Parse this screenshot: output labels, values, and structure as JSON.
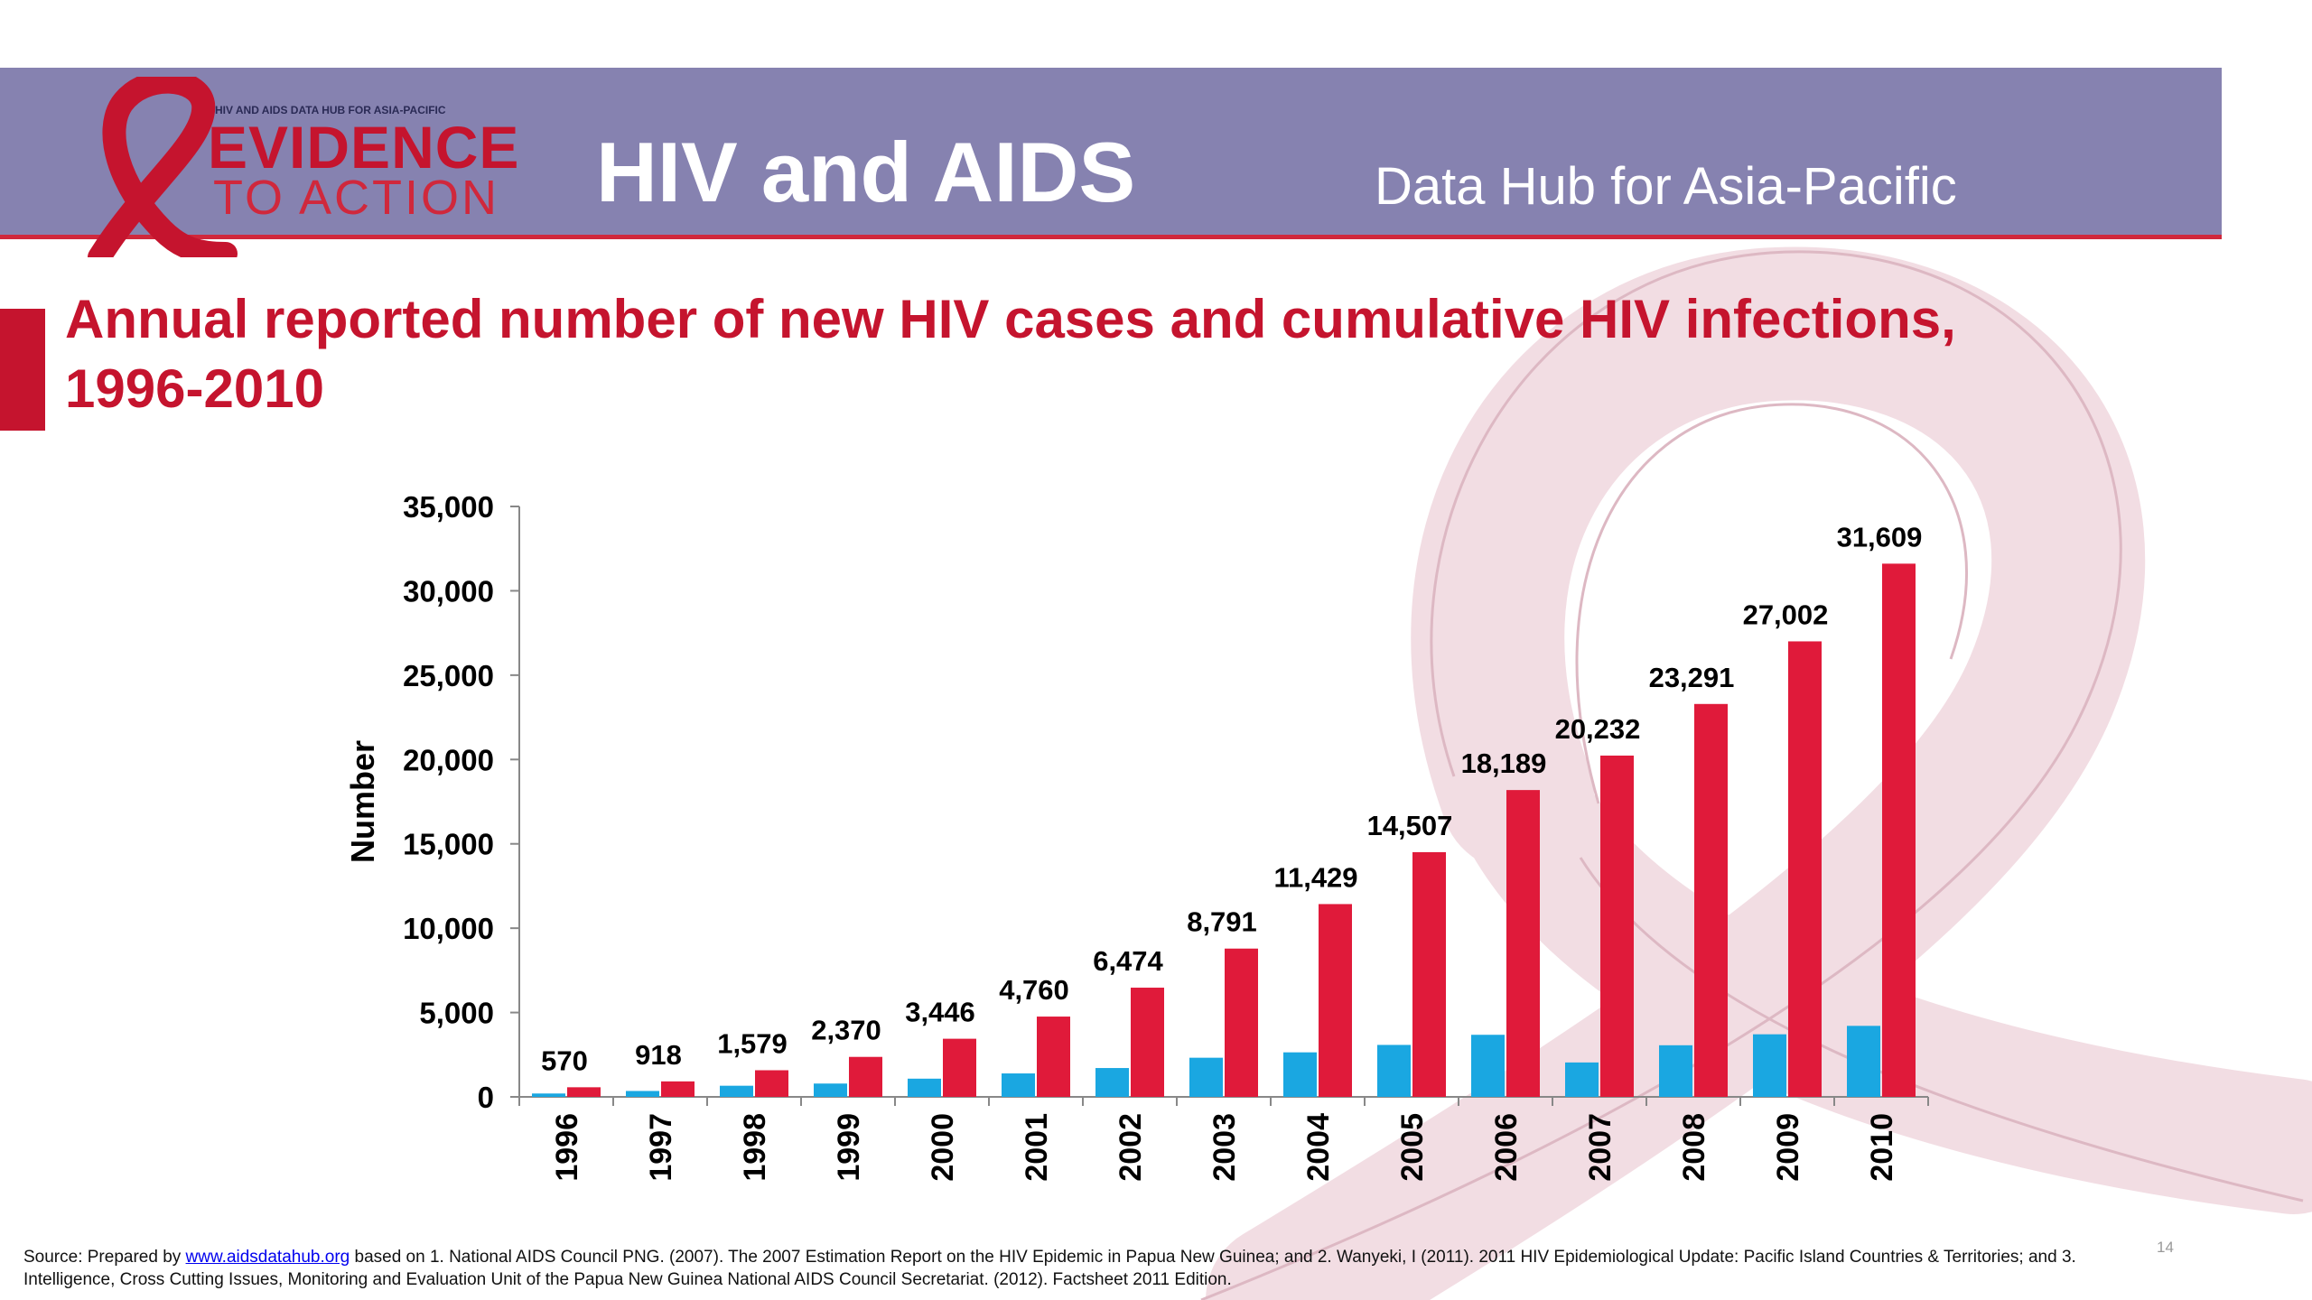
{
  "header": {
    "logo": {
      "line1": "HIV AND AIDS DATA HUB FOR ASIA-PACIFIC",
      "line2": "EVIDENCE",
      "line3": "TO ACTION"
    },
    "title": "HIV and AIDS",
    "subtitle": "Data Hub for Asia-Pacific"
  },
  "colors": {
    "header_band": "#8682b0",
    "brand_red": "#c5142e",
    "new_cases": "#1aa7e1",
    "cumulative": "#e01a3a",
    "ribbon_watermark": "#f2dde3"
  },
  "chart_data": {
    "type": "bar",
    "title_lines": [
      "Annual reported number of  new HIV cases and cumulative HIV infections,",
      "1996-2010"
    ],
    "xlabel": "",
    "ylabel": "Number",
    "ylim": [
      0,
      35000
    ],
    "yticks": [
      "0",
      "5,000",
      "10,000",
      "15,000",
      "20,000",
      "25,000",
      "30,000",
      "35,000"
    ],
    "categories": [
      "1996",
      "1997",
      "1998",
      "1999",
      "2000",
      "2001",
      "2002",
      "2003",
      "2004",
      "2005",
      "2006",
      "2007",
      "2008",
      "2009",
      "2010"
    ],
    "series": [
      {
        "color": "#1aa7e1",
        "values": [
          200,
          350,
          660,
          790,
          1080,
          1390,
          1710,
          2320,
          2640,
          3080,
          3680,
          2040,
          3060,
          3710,
          4210
        ]
      },
      {
        "color": "#e01a3a",
        "values": [
          570,
          918,
          1579,
          2370,
          3446,
          4760,
          6474,
          8791,
          11429,
          14507,
          18189,
          20232,
          23291,
          27002,
          31609
        ],
        "labels": [
          "570",
          "918",
          "1,579",
          "2,370",
          "3,446",
          "4,760",
          "6,474",
          "8,791",
          "11,429",
          "14,507",
          "18,189",
          "20,232",
          "23,291",
          "27,002",
          "31,609"
        ]
      }
    ],
    "legend": "none",
    "grid": false
  },
  "footer": {
    "source_prefix": "Source: Prepared by ",
    "source_link": "www.aidsdatahub.org",
    "source_rest": "  based on 1. National AIDS Council PNG. (2007). The 2007 Estimation Report on the HIV Epidemic in Papua New Guinea; and 2. Wanyeki, I (2011). 2011 HIV Epidemiological Update: Pacific Island Countries & Territories; and 3. Intelligence, Cross Cutting Issues, Monitoring and Evaluation Unit of the Papua New Guinea National AIDS Council Secretariat. (2012). Factsheet 2011 Edition.",
    "page_number": "14"
  }
}
